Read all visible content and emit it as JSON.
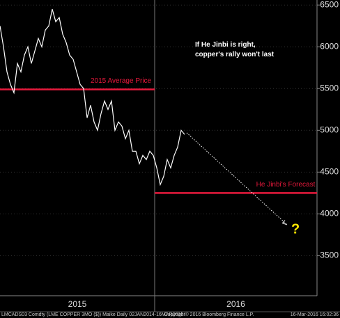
{
  "chart_data": {
    "type": "line",
    "bands": [
      "2015",
      "2016"
    ],
    "series": [
      {
        "name": "LME Copper",
        "color": "#ffffff",
        "values": [
          6250,
          6000,
          5700,
          5550,
          5450,
          5800,
          5700,
          5900,
          6000,
          5800,
          5950,
          6100,
          6000,
          6200,
          6250,
          6450,
          6300,
          6350,
          6150,
          6050,
          5900,
          5850,
          5700,
          5550,
          5500,
          5150,
          5300,
          5100,
          5000,
          5200,
          5350,
          5250,
          5350,
          5000,
          5100,
          5050,
          4900,
          5000,
          4750,
          4750,
          4600,
          4700,
          4650,
          4750,
          4700,
          4550,
          4350,
          4450,
          4650,
          4550,
          4700,
          4800,
          5000,
          4950
        ]
      }
    ],
    "ylim": [
      3020,
      6560
    ],
    "yticks": [
      3500,
      4000,
      4500,
      5000,
      5500,
      6000,
      6500
    ],
    "grid": true,
    "reference_lines": [
      {
        "label": "2015 Average Price",
        "value": 5490,
        "color": "#e8193c"
      },
      {
        "label": "He Jinbi's Forecast",
        "value": 4250,
        "color": "#e8193c"
      }
    ],
    "forecast_arrow": {
      "from": 4970,
      "to": 3870
    },
    "question_mark": "?",
    "annotation": "If He Jinbi is right, copper's rally won't last",
    "footer": {
      "left": "LMCADS03 Comdty (LME COPPER  3MO ($)) Maike  Daily 02JAN2014-16MAR2016",
      "center": "Copyright© 2016 Bloomberg Finance L.P.",
      "right": "16-Mar-2016 16:02:36"
    }
  }
}
